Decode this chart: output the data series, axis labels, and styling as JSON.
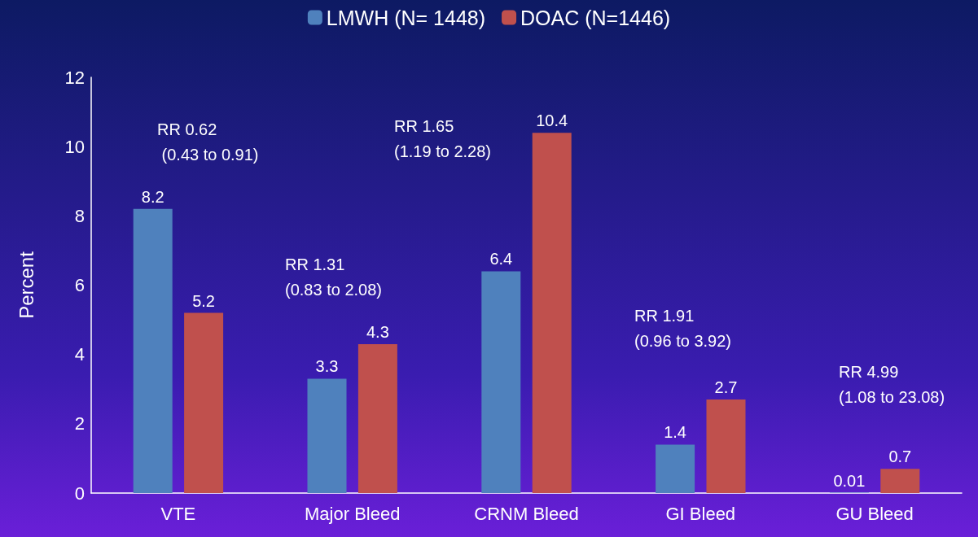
{
  "chart_data": {
    "type": "bar",
    "ylabel": "Percent",
    "categories": [
      "VTE",
      "Major Bleed",
      "CRNM Bleed",
      "GI Bleed",
      "GU Bleed"
    ],
    "series": [
      {
        "name": "LMWH (N= 1448)",
        "color": "#4f81bd",
        "values": [
          8.2,
          3.3,
          6.4,
          1.4,
          0.01
        ]
      },
      {
        "name": "DOAC (N=1446)",
        "color": "#c0504d",
        "values": [
          5.2,
          4.3,
          10.4,
          2.7,
          0.7
        ]
      }
    ],
    "ylim": [
      0,
      12
    ],
    "yticks": [
      0,
      2,
      4,
      6,
      8,
      10,
      12
    ],
    "grid": false,
    "legend": "top",
    "data_labels": true,
    "annotations": [
      "RR 0.62\n (0.43 to 0.91)",
      "RR 1.31\n(0.83 to 2.08)",
      "RR 1.65\n(1.19 to 2.28)",
      "RR 1.91\n(0.96 to 3.92)",
      "RR 4.99\n(1.08 to 23.08)"
    ]
  }
}
